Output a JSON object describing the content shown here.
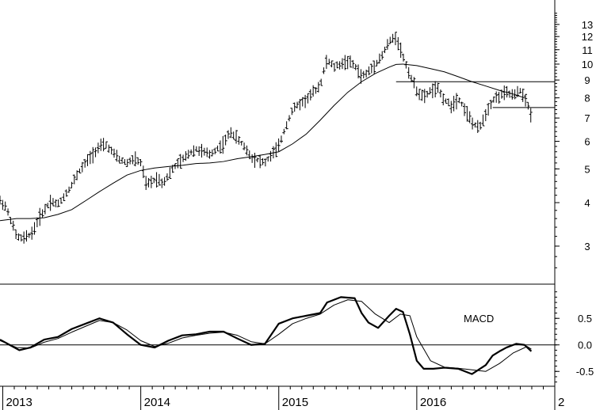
{
  "chart_data": [
    {
      "type": "ohlc-bar",
      "scale": "log",
      "y_ticks": [
        3,
        4,
        5,
        6,
        7,
        8,
        9,
        10,
        11,
        12,
        13
      ],
      "ylim": [
        2.55,
        14.2
      ],
      "x_labels": [
        "2013",
        "2014",
        "2015",
        "2016",
        "2"
      ],
      "x_label_positions": [
        2013.0,
        2014.0,
        2015.0,
        2016.0,
        2017.0
      ],
      "xlim": [
        2012.98,
        2017.0
      ],
      "series": [
        {
          "kind": "price",
          "points": [
            [
              2012.98,
              4.05
            ],
            [
              2013.02,
              3.9
            ],
            [
              2013.06,
              3.55
            ],
            [
              2013.1,
              3.2
            ],
            [
              2013.14,
              3.15
            ],
            [
              2013.18,
              3.2
            ],
            [
              2013.22,
              3.3
            ],
            [
              2013.26,
              3.6
            ],
            [
              2013.3,
              3.8
            ],
            [
              2013.35,
              4.05
            ],
            [
              2013.4,
              3.95
            ],
            [
              2013.45,
              4.2
            ],
            [
              2013.5,
              4.5
            ],
            [
              2013.55,
              4.9
            ],
            [
              2013.6,
              5.2
            ],
            [
              2013.65,
              5.5
            ],
            [
              2013.7,
              5.8
            ],
            [
              2013.75,
              5.85
            ],
            [
              2013.8,
              5.55
            ],
            [
              2013.85,
              5.3
            ],
            [
              2013.9,
              5.2
            ],
            [
              2013.95,
              5.35
            ],
            [
              2014.0,
              5.2
            ],
            [
              2014.04,
              4.5
            ],
            [
              2014.08,
              4.6
            ],
            [
              2014.12,
              4.7
            ],
            [
              2014.16,
              4.55
            ],
            [
              2014.2,
              4.8
            ],
            [
              2014.25,
              5.1
            ],
            [
              2014.3,
              5.3
            ],
            [
              2014.35,
              5.55
            ],
            [
              2014.4,
              5.7
            ],
            [
              2014.45,
              5.6
            ],
            [
              2014.5,
              5.5
            ],
            [
              2014.55,
              5.7
            ],
            [
              2014.6,
              5.9
            ],
            [
              2014.65,
              6.4
            ],
            [
              2014.7,
              6.1
            ],
            [
              2014.75,
              5.8
            ],
            [
              2014.8,
              5.4
            ],
            [
              2014.85,
              5.3
            ],
            [
              2014.9,
              5.2
            ],
            [
              2014.95,
              5.5
            ],
            [
              2015.0,
              5.8
            ],
            [
              2015.05,
              6.6
            ],
            [
              2015.1,
              7.4
            ],
            [
              2015.15,
              7.7
            ],
            [
              2015.2,
              7.9
            ],
            [
              2015.25,
              8.3
            ],
            [
              2015.3,
              8.7
            ],
            [
              2015.35,
              10.3
            ],
            [
              2015.4,
              9.8
            ],
            [
              2015.45,
              10.0
            ],
            [
              2015.5,
              10.2
            ],
            [
              2015.55,
              9.9
            ],
            [
              2015.6,
              9.2
            ],
            [
              2015.65,
              9.5
            ],
            [
              2015.7,
              10.0
            ],
            [
              2015.75,
              10.6
            ],
            [
              2015.8,
              11.6
            ],
            [
              2015.85,
              12.0
            ],
            [
              2015.9,
              10.5
            ],
            [
              2015.95,
              9.3
            ],
            [
              2016.0,
              8.4
            ],
            [
              2016.05,
              8.0
            ],
            [
              2016.1,
              8.4
            ],
            [
              2016.15,
              8.5
            ],
            [
              2016.2,
              7.9
            ],
            [
              2016.25,
              7.6
            ],
            [
              2016.3,
              8.0
            ],
            [
              2016.35,
              7.4
            ],
            [
              2016.4,
              6.8
            ],
            [
              2016.45,
              6.5
            ],
            [
              2016.5,
              7.2
            ],
            [
              2016.55,
              7.9
            ],
            [
              2016.6,
              8.1
            ],
            [
              2016.65,
              8.3
            ],
            [
              2016.7,
              8.1
            ],
            [
              2016.75,
              8.4
            ],
            [
              2016.8,
              7.7
            ],
            [
              2016.83,
              7.1
            ]
          ]
        },
        {
          "kind": "moving-average",
          "points": [
            [
              2012.98,
              3.55
            ],
            [
              2013.1,
              3.6
            ],
            [
              2013.2,
              3.6
            ],
            [
              2013.3,
              3.62
            ],
            [
              2013.4,
              3.7
            ],
            [
              2013.5,
              3.82
            ],
            [
              2013.6,
              4.05
            ],
            [
              2013.7,
              4.3
            ],
            [
              2013.8,
              4.55
            ],
            [
              2013.9,
              4.8
            ],
            [
              2014.0,
              4.95
            ],
            [
              2014.1,
              5.03
            ],
            [
              2014.2,
              5.08
            ],
            [
              2014.3,
              5.12
            ],
            [
              2014.4,
              5.18
            ],
            [
              2014.5,
              5.2
            ],
            [
              2014.6,
              5.25
            ],
            [
              2014.7,
              5.35
            ],
            [
              2014.8,
              5.42
            ],
            [
              2014.9,
              5.5
            ],
            [
              2015.0,
              5.6
            ],
            [
              2015.1,
              5.9
            ],
            [
              2015.2,
              6.3
            ],
            [
              2015.3,
              6.9
            ],
            [
              2015.4,
              7.6
            ],
            [
              2015.5,
              8.3
            ],
            [
              2015.6,
              8.9
            ],
            [
              2015.7,
              9.4
            ],
            [
              2015.8,
              9.8
            ],
            [
              2015.85,
              9.98
            ],
            [
              2015.9,
              10.0
            ],
            [
              2016.0,
              9.9
            ],
            [
              2016.1,
              9.7
            ],
            [
              2016.2,
              9.5
            ],
            [
              2016.3,
              9.2
            ],
            [
              2016.4,
              8.9
            ],
            [
              2016.5,
              8.65
            ],
            [
              2016.6,
              8.4
            ],
            [
              2016.7,
              8.2
            ],
            [
              2016.8,
              7.95
            ]
          ]
        }
      ],
      "reference_lines": [
        {
          "y": 8.9,
          "x": [
            2015.85,
            2017.0
          ]
        },
        {
          "y": 7.5,
          "x": [
            2016.55,
            2017.0
          ]
        }
      ]
    },
    {
      "type": "line",
      "title": "MACD",
      "y_ticks": [
        -0.5,
        0.0,
        0.5
      ],
      "y_tick_labels": [
        "-0.5",
        "0.0",
        "0.5"
      ],
      "ylim": [
        -0.75,
        1.1
      ],
      "xlim": [
        2012.98,
        2017.0
      ],
      "series": [
        {
          "kind": "macd",
          "x": [
            2012.98,
            2013.05,
            2013.12,
            2013.2,
            2013.3,
            2013.4,
            2013.5,
            2013.6,
            2013.7,
            2013.8,
            2013.9,
            2014.0,
            2014.1,
            2014.2,
            2014.3,
            2014.4,
            2014.5,
            2014.6,
            2014.7,
            2014.8,
            2014.9,
            2015.0,
            2015.1,
            2015.2,
            2015.3,
            2015.35,
            2015.45,
            2015.55,
            2015.6,
            2015.65,
            2015.72,
            2015.8,
            2015.85,
            2015.9,
            2015.95,
            2016.0,
            2016.05,
            2016.12,
            2016.2,
            2016.3,
            2016.35,
            2016.4,
            2016.5,
            2016.55,
            2016.6,
            2016.65,
            2016.72,
            2016.78,
            2016.83
          ],
          "y": [
            0.1,
            0.0,
            -0.1,
            -0.05,
            0.1,
            0.15,
            0.3,
            0.4,
            0.5,
            0.42,
            0.2,
            0.0,
            -0.05,
            0.08,
            0.18,
            0.2,
            0.25,
            0.25,
            0.12,
            0.0,
            0.02,
            0.4,
            0.5,
            0.55,
            0.6,
            0.8,
            0.9,
            0.88,
            0.6,
            0.42,
            0.32,
            0.55,
            0.68,
            0.62,
            0.2,
            -0.3,
            -0.45,
            -0.45,
            -0.43,
            -0.45,
            -0.5,
            -0.55,
            -0.38,
            -0.2,
            -0.12,
            -0.05,
            0.02,
            0.0,
            -0.12
          ]
        },
        {
          "kind": "signal",
          "x": [
            2012.98,
            2013.1,
            2013.2,
            2013.3,
            2013.4,
            2013.5,
            2013.6,
            2013.7,
            2013.8,
            2013.9,
            2014.0,
            2014.1,
            2014.2,
            2014.3,
            2014.4,
            2014.5,
            2014.6,
            2014.7,
            2014.8,
            2014.9,
            2015.0,
            2015.1,
            2015.2,
            2015.3,
            2015.4,
            2015.5,
            2015.6,
            2015.7,
            2015.8,
            2015.88,
            2015.95,
            2016.0,
            2016.1,
            2016.2,
            2016.3,
            2016.4,
            2016.5,
            2016.6,
            2016.7,
            2016.8,
            2016.83
          ],
          "y": [
            0.08,
            -0.05,
            -0.06,
            0.05,
            0.12,
            0.24,
            0.35,
            0.46,
            0.42,
            0.28,
            0.08,
            -0.03,
            0.03,
            0.13,
            0.18,
            0.22,
            0.24,
            0.18,
            0.06,
            0.02,
            0.2,
            0.4,
            0.5,
            0.58,
            0.75,
            0.85,
            0.82,
            0.58,
            0.42,
            0.58,
            0.55,
            0.15,
            -0.3,
            -0.42,
            -0.44,
            -0.47,
            -0.5,
            -0.35,
            -0.15,
            -0.03,
            -0.08
          ]
        }
      ],
      "zero_line": 0.0
    }
  ]
}
